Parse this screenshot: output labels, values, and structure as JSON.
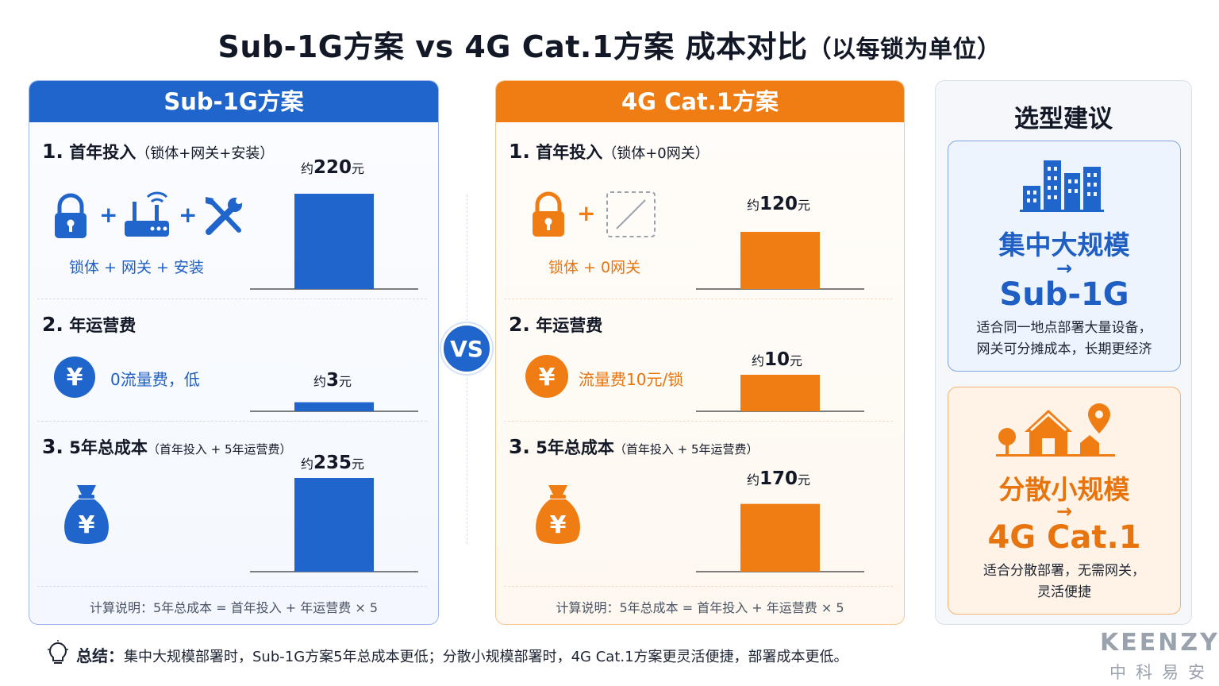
{
  "title": {
    "main": "Sub-1G方案 vs 4G Cat.1方案  成本对比",
    "suffix": "（以每锁为单位）"
  },
  "vs_label": "VS",
  "panels": {
    "blue": {
      "header": "Sub-1G方案",
      "sec1": {
        "num": "1.",
        "label": "首年投入",
        "note": "（锁体+网关+安装）",
        "caption": "锁体  +  网关  +  安装",
        "value_prefix": "约",
        "value": "220",
        "unit": "元"
      },
      "sec2": {
        "num": "2.",
        "label": "年运营费",
        "desc": "0流量费，低",
        "value_prefix": "约",
        "value": "3",
        "unit": "元"
      },
      "sec3": {
        "num": "3.",
        "label": "5年总成本",
        "note": "（首年投入 + 5年运营费）",
        "value_prefix": "约",
        "value": "235",
        "unit": "元"
      },
      "calc": "计算说明：5年总成本 = 首年投入 + 年运营费 × 5",
      "plus": "+"
    },
    "orange": {
      "header": "4G Cat.1方案",
      "sec1": {
        "num": "1.",
        "label": "首年投入",
        "note": "（锁体+0网关）",
        "caption": "锁体  +  0网关",
        "value_prefix": "约",
        "value": "120",
        "unit": "元"
      },
      "sec2": {
        "num": "2.",
        "label": "年运营费",
        "desc": "流量费10元/锁",
        "value_prefix": "约",
        "value": "10",
        "unit": "元"
      },
      "sec3": {
        "num": "3.",
        "label": "5年总成本",
        "note": "（首年投入 + 5年运营费）",
        "value_prefix": "约",
        "value": "170",
        "unit": "元"
      },
      "calc": "计算说明：5年总成本 = 首年投入 + 年运营费 × 5",
      "plus": "+"
    }
  },
  "advice": {
    "title": "选型建议",
    "card1": {
      "line1": "集中大规模",
      "arrow": "→",
      "line2": "Sub-1G",
      "desc1": "适合同一地点部署大量设备，",
      "desc2": "网关可分摊成本，长期更经济"
    },
    "card2": {
      "line1": "分散小规模",
      "arrow": "→",
      "line2": "4G Cat.1",
      "desc1": "适合分散部署，无需网关，",
      "desc2": "灵活便捷"
    }
  },
  "summary": {
    "label": "总结：",
    "text": "集中大规模部署时，Sub-1G方案5年总成本更低；分散小规模部署时，4G Cat.1方案更灵活便捷，部署成本更低。"
  },
  "brand": {
    "logo": "KEENZY",
    "cn": "中科易安"
  },
  "colors": {
    "blue": "#1f65cc",
    "orange": "#f07c14"
  },
  "chart_data": [
    {
      "type": "bar",
      "title": "首年投入",
      "categories": [
        "Sub-1G方案",
        "4G Cat.1方案"
      ],
      "values": [
        220,
        120
      ],
      "unit": "元"
    },
    {
      "type": "bar",
      "title": "年运营费",
      "categories": [
        "Sub-1G方案",
        "4G Cat.1方案"
      ],
      "values": [
        3,
        10
      ],
      "unit": "元"
    },
    {
      "type": "bar",
      "title": "5年总成本",
      "categories": [
        "Sub-1G方案",
        "4G Cat.1方案"
      ],
      "values": [
        235,
        170
      ],
      "unit": "元"
    }
  ]
}
